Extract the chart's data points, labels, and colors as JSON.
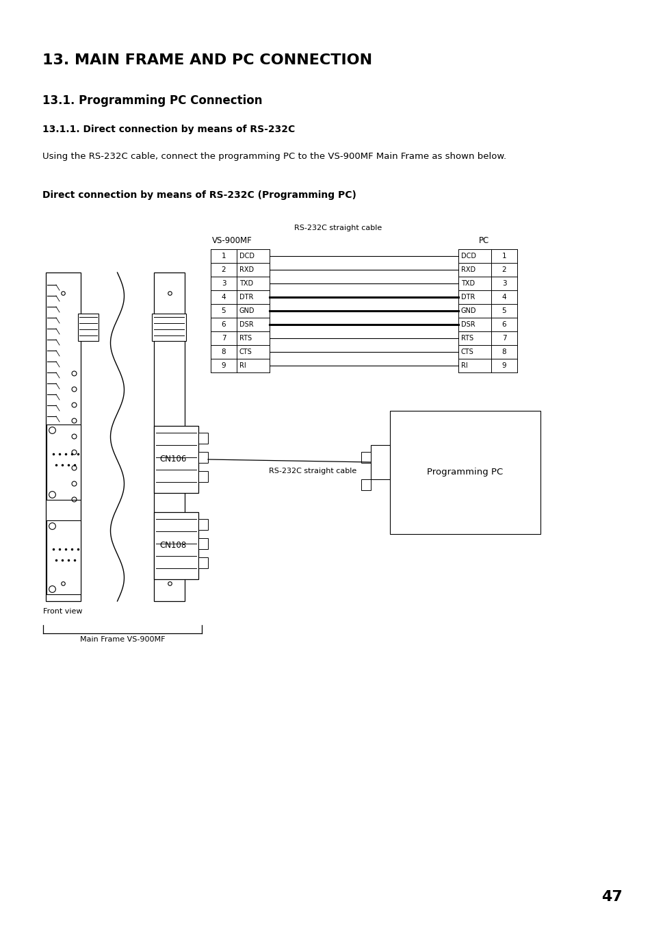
{
  "title1": "13. MAIN FRAME AND PC CONNECTION",
  "title2": "13.1. Programming PC Connection",
  "title3": "13.1.1. Direct connection by means of RS-232C",
  "body_text": "Using the RS-232C cable, connect the programming PC to the VS-900MF Main Frame as shown below.",
  "diagram_title": "Direct connection by means of RS-232C (Programming PC)",
  "cable_label_top": "RS-232C straight cable",
  "vs900mf_label": "VS-900MF",
  "pc_label": "PC",
  "pins": [
    {
      "num": "1",
      "name": "DCD"
    },
    {
      "num": "2",
      "name": "RXD"
    },
    {
      "num": "3",
      "name": "TXD"
    },
    {
      "num": "4",
      "name": "DTR"
    },
    {
      "num": "5",
      "name": "GND"
    },
    {
      "num": "6",
      "name": "DSR"
    },
    {
      "num": "7",
      "name": "RTS"
    },
    {
      "num": "8",
      "name": "CTS"
    },
    {
      "num": "9",
      "name": "RI"
    }
  ],
  "thick_pins": [
    4,
    5,
    6
  ],
  "cn106_label": "CN106",
  "cn108_label": "CN108",
  "cable_label_bottom": "RS-232C straight cable",
  "programming_pc_label": "Programming PC",
  "front_view_label": "Front view",
  "main_frame_label": "Main Frame VS-900MF",
  "page_number": "47",
  "bg_color": "#ffffff"
}
